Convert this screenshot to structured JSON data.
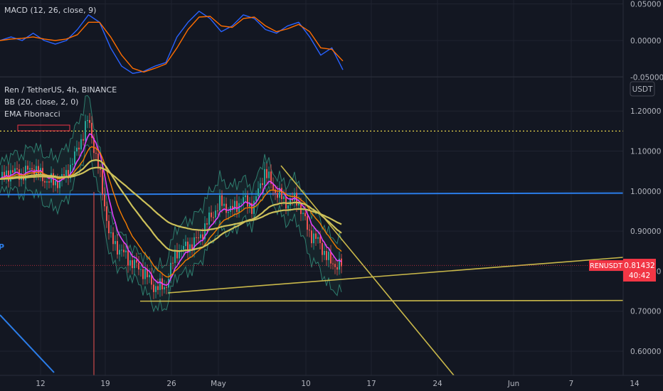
{
  "colors": {
    "background": "#131722",
    "grid": "#1f2330",
    "up": "#26a69a",
    "down": "#ef5350",
    "bb": "#2e7d6e",
    "ema_pink": "#e040fb",
    "ema_orange": "#f57c00",
    "ema_yellow": "#cdc15a",
    "trend_yellow": "#c9b84a",
    "hline_blue": "#2b7de9",
    "macd_line": "#2962ff",
    "macd_signal": "#ff6d00",
    "dotted": "#e6d34a",
    "price_badge": "#f23645"
  },
  "macd": {
    "label": "MACD (12, 26, close, 9)",
    "axis_ticks": [
      "0.05000",
      "0.00000",
      "-0.05000"
    ]
  },
  "main": {
    "title": "Ren / TetherUS, 4h, BINANCE",
    "indicator_bb": "BB (20, close, 2, 0)",
    "indicator_ema": "EMA Fibonacci",
    "currency": "USDT",
    "side_text": "P",
    "axis_ticks": [
      "1.20000",
      "1.10000",
      "1.00000",
      "0.90000",
      "0.80000",
      "0.70000",
      "0.60000"
    ],
    "badge_symbol": "RENUSDT",
    "badge_price": "0.81432",
    "badge_timer": "40:42"
  },
  "x_axis": {
    "ticks": [
      "12",
      "19",
      "26",
      "May",
      "10",
      "17",
      "24",
      "Jun",
      "7",
      "14"
    ]
  },
  "chart_data": [
    {
      "type": "line",
      "title": "MACD (12, 26, close, 9)",
      "ylim": [
        -0.05,
        0.05
      ],
      "series": [
        {
          "name": "MACD",
          "values": [
            0.0,
            0.005,
            0.0,
            0.01,
            0.0,
            -0.005,
            0.0,
            0.015,
            0.035,
            0.025,
            -0.01,
            -0.035,
            -0.045,
            -0.042,
            -0.035,
            -0.03,
            0.005,
            0.025,
            0.04,
            0.03,
            0.012,
            0.02,
            0.035,
            0.03,
            0.015,
            0.01,
            0.02,
            0.025,
            0.005,
            -0.02,
            -0.01,
            -0.04
          ]
        },
        {
          "name": "Signal",
          "values": [
            0.0,
            0.002,
            0.003,
            0.005,
            0.002,
            0.0,
            0.002,
            0.008,
            0.025,
            0.025,
            0.005,
            -0.02,
            -0.038,
            -0.043,
            -0.038,
            -0.032,
            -0.01,
            0.015,
            0.032,
            0.033,
            0.02,
            0.018,
            0.03,
            0.032,
            0.02,
            0.012,
            0.016,
            0.022,
            0.012,
            -0.01,
            -0.012,
            -0.028
          ]
        }
      ]
    },
    {
      "type": "line",
      "title": "Ren / TetherUS, 4h, BINANCE",
      "ylim": [
        0.55,
        1.25
      ],
      "series": [
        {
          "name": "close",
          "values": [
            1.03,
            1.05,
            1.04,
            1.06,
            1.03,
            1.02,
            1.04,
            1.1,
            1.18,
            1.05,
            0.88,
            0.85,
            0.82,
            0.8,
            0.76,
            0.76,
            0.85,
            0.86,
            0.88,
            0.93,
            0.97,
            0.95,
            0.98,
            0.96,
            1.05,
            1.0,
            0.97,
            0.98,
            0.9,
            0.87,
            0.82,
            0.81432
          ]
        }
      ],
      "horizontal_lines": [
        1.15,
        0.995,
        0.725
      ],
      "current_price": 0.81432
    }
  ]
}
